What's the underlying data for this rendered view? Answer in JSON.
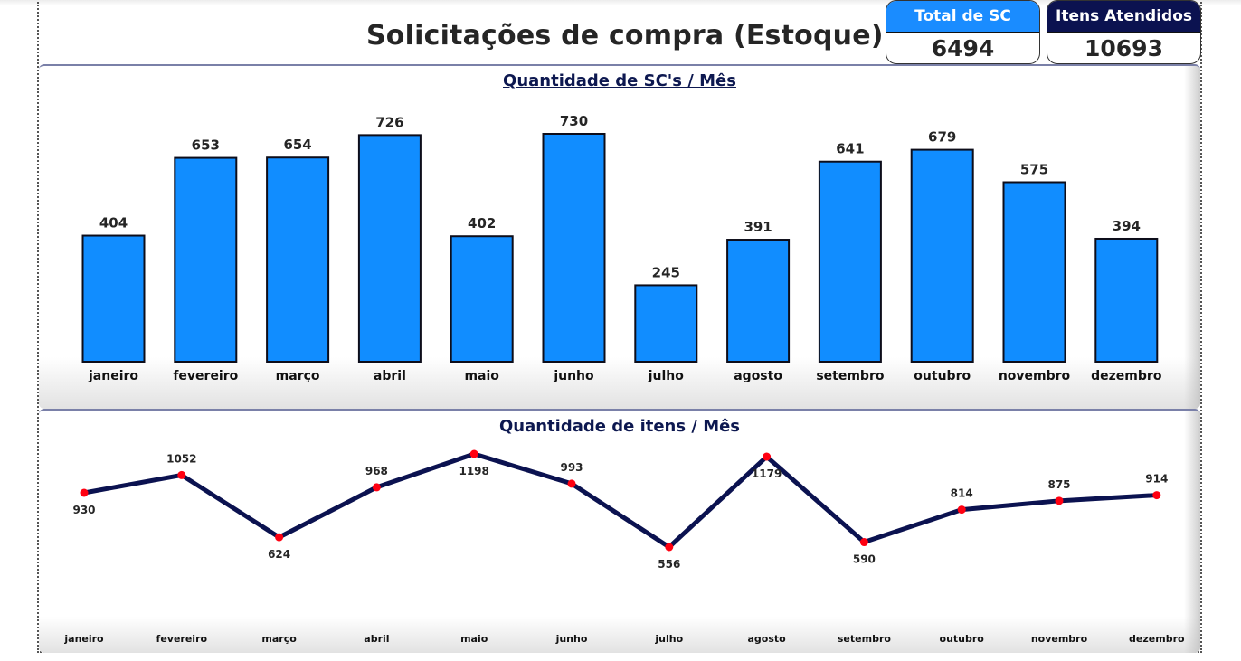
{
  "header": {
    "title": "Solicitações de compra (Estoque)"
  },
  "kpis": [
    {
      "label": "Total de SC",
      "value": "6494",
      "color": "#1a8cff"
    },
    {
      "label": "Itens Atendidos",
      "value": "10693",
      "color": "#0b1250"
    }
  ],
  "colors": {
    "bar_fill": "#118dff",
    "bar_stroke": "#0d0d1a",
    "line": "#0b1250",
    "marker": "#ff0011",
    "title": "#0d1850"
  },
  "chart_data": [
    {
      "type": "bar",
      "title": "Quantidade de SC's / Mês",
      "xlabel": "",
      "ylabel": "",
      "categories": [
        "janeiro",
        "fevereiro",
        "março",
        "abril",
        "maio",
        "junho",
        "julho",
        "agosto",
        "setembro",
        "outubro",
        "novembro",
        "dezembro"
      ],
      "values": [
        404,
        653,
        654,
        726,
        402,
        730,
        245,
        391,
        641,
        679,
        575,
        394
      ],
      "grid": false,
      "legend": "none",
      "data_labels": true
    },
    {
      "type": "line",
      "title": "Quantidade de itens / Mês",
      "xlabel": "",
      "ylabel": "",
      "categories": [
        "janeiro",
        "fevereiro",
        "março",
        "abril",
        "maio",
        "junho",
        "julho",
        "agosto",
        "setembro",
        "outubro",
        "novembro",
        "dezembro"
      ],
      "values": [
        930,
        1052,
        624,
        968,
        1198,
        993,
        556,
        1179,
        590,
        814,
        875,
        914
      ],
      "label_position": [
        "below",
        "above",
        "below",
        "above",
        "below",
        "above",
        "below",
        "below",
        "below",
        "above",
        "above",
        "above"
      ],
      "grid": false,
      "legend": "none",
      "data_labels": true
    }
  ]
}
